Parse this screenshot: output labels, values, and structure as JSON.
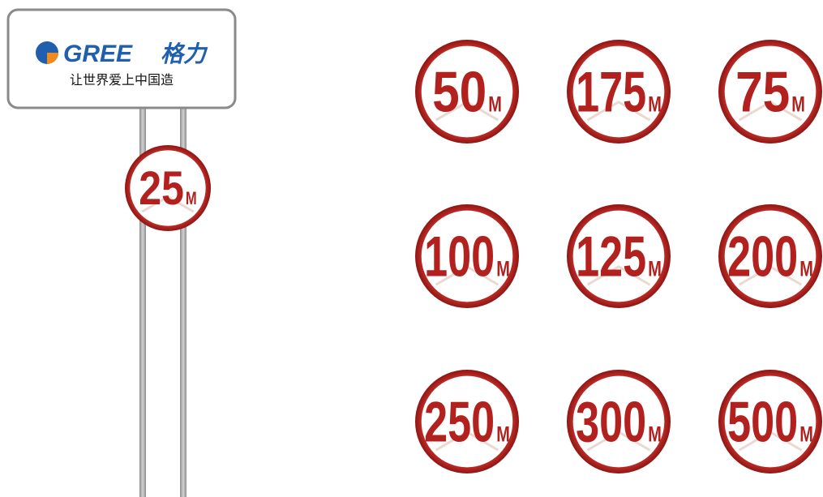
{
  "sign": {
    "brand": "GREE",
    "brand_cn": "格力",
    "slogan": "让世界爱上中国造"
  },
  "unit": "M",
  "pole_marker": {
    "value": 25
  },
  "markers": [
    {
      "value": 50
    },
    {
      "value": 175
    },
    {
      "value": 75
    },
    {
      "value": 100
    },
    {
      "value": 125
    },
    {
      "value": 200
    },
    {
      "value": 250
    },
    {
      "value": 300
    },
    {
      "value": 500
    }
  ]
}
